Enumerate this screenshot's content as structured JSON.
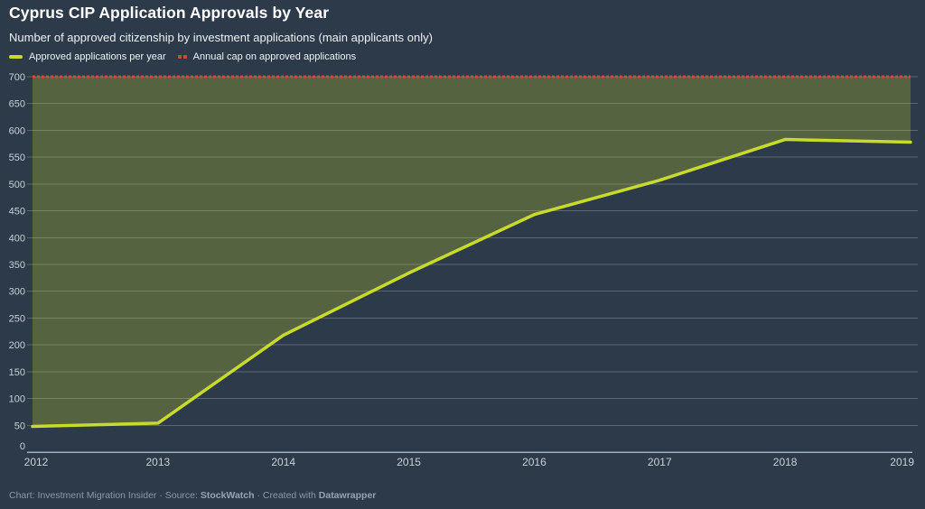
{
  "header": {
    "title": "Cyprus CIP Application Approvals by Year",
    "subtitle": "Number of approved citizenship by investment applications (main applicants only)"
  },
  "legend": {
    "items": [
      {
        "label": "Approved applications per year",
        "swatch": "line-swatch"
      },
      {
        "label": "Annual cap on approved applications",
        "swatch": "dots-swatch"
      }
    ]
  },
  "footer": {
    "parts": [
      {
        "text": "Chart: Investment Migration Insider · Source: ",
        "bold": false
      },
      {
        "text": "StockWatch",
        "bold": true
      },
      {
        "text": " · Created with ",
        "bold": false
      },
      {
        "text": "Datawrapper",
        "bold": true
      }
    ]
  },
  "colors": {
    "background": "#2d3a49",
    "series_line": "#c8da2c",
    "cap_line": "#cc4a3f",
    "area_fill_opacity": 0.26,
    "grid": "rgba(255,255,255,0.22)",
    "axis_line": "#a5aeb8",
    "axis_text": "#c9d0d6"
  },
  "chart_data": {
    "type": "line",
    "title": "Cyprus CIP Application Approvals by Year",
    "subtitle": "Number of approved citizenship by investment applications (main applicants only)",
    "x": [
      2012,
      2013,
      2014,
      2015,
      2016,
      2017,
      2018,
      2019
    ],
    "series": [
      {
        "name": "Approved applications per year",
        "style": "solid",
        "color": "#c8da2c",
        "values": [
          48,
          54,
          218,
          334,
          443,
          507,
          583,
          578
        ]
      },
      {
        "name": "Annual cap on approved applications",
        "style": "dotted",
        "color": "#cc4a3f",
        "values": [
          700,
          700,
          700,
          700,
          700,
          700,
          700,
          700
        ]
      }
    ],
    "area_between_series": true,
    "ylim": [
      0,
      700
    ],
    "y_ticks": [
      0,
      50,
      100,
      150,
      200,
      250,
      300,
      350,
      400,
      450,
      500,
      550,
      600,
      650,
      700
    ],
    "grid": true,
    "legend_position": "top"
  }
}
